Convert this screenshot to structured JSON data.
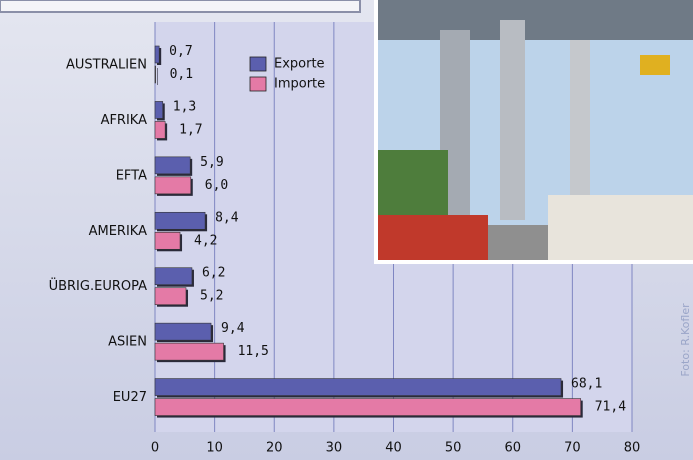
{
  "chart_data": {
    "type": "bar",
    "orientation": "horizontal",
    "categories": [
      "AUSTRALIEN",
      "AFRIKA",
      "EFTA",
      "AMERIKA",
      "ÜBRIG.EUROPA",
      "ASIEN",
      "EU27"
    ],
    "series": [
      {
        "name": "Exporte",
        "color": "#5b5fae",
        "values": [
          0.7,
          1.3,
          5.9,
          8.4,
          6.2,
          9.4,
          68.1
        ],
        "value_labels": [
          "0,7",
          "1,3",
          "5,9",
          "8,4",
          "6,2",
          "9,4",
          "68,1"
        ]
      },
      {
        "name": "Importe",
        "color": "#e47aa6",
        "values": [
          0.1,
          1.7,
          6.0,
          4.2,
          5.2,
          11.5,
          71.4
        ],
        "value_labels": [
          "0,1",
          "1,7",
          "6,0",
          "4,2",
          "5,2",
          "11,5",
          "71,4"
        ]
      }
    ],
    "xlim": [
      0,
      80
    ],
    "xticks": [
      0,
      10,
      20,
      30,
      40,
      50,
      60,
      70,
      80
    ],
    "grid": true,
    "credit": "Foto: R.Kofler"
  }
}
